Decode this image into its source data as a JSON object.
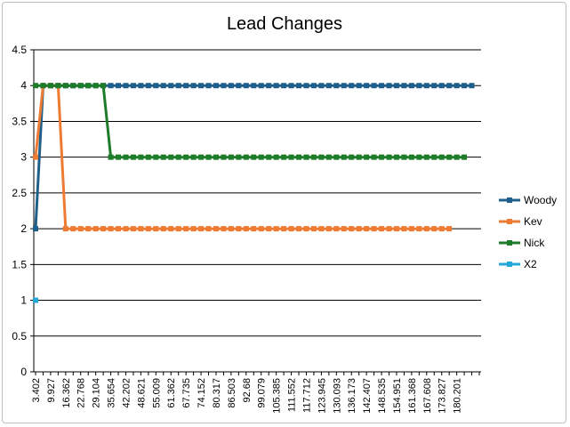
{
  "chart_data": {
    "type": "line",
    "title": "Lead Changes",
    "xlabel": "",
    "ylabel": "",
    "ylim": [
      0,
      4.5
    ],
    "y_ticks": [
      "0",
      "0.5",
      "1",
      "1.5",
      "2",
      "2.5",
      "3",
      "3.5",
      "4",
      "4.5"
    ],
    "x_tick_labels": [
      "3.402",
      "9.927",
      "16.362",
      "22.768",
      "29.104",
      "35.654",
      "42.202",
      "48.621",
      "55.009",
      "61.362",
      "67.735",
      "74.152",
      "80.317",
      "86.503",
      "92.68",
      "99.079",
      "105.385",
      "111.552",
      "117.712",
      "123.945",
      "130.093",
      "136.173",
      "142.407",
      "148.535",
      "154.951",
      "161.368",
      "167.608",
      "173.827",
      "180.201"
    ],
    "grid": true,
    "legend_position": "right",
    "series": [
      {
        "name": "Woody",
        "color": "#1f5f8b",
        "values": [
          2,
          4,
          4,
          4,
          4,
          4,
          4,
          4,
          4,
          4,
          4,
          4,
          4,
          4,
          4,
          4,
          4,
          4,
          4,
          4,
          4,
          4,
          4,
          4,
          4,
          4,
          4,
          4,
          4,
          4,
          4,
          4,
          4,
          4,
          4,
          4,
          4,
          4,
          4,
          4,
          4,
          4,
          4,
          4,
          4,
          4,
          4,
          4,
          4,
          4,
          4,
          4,
          4,
          4,
          4,
          4,
          4,
          4,
          4
        ]
      },
      {
        "name": "Kev",
        "color": "#ee7b34",
        "values": [
          3,
          4,
          4,
          4,
          2,
          2,
          2,
          2,
          2,
          2,
          2,
          2,
          2,
          2,
          2,
          2,
          2,
          2,
          2,
          2,
          2,
          2,
          2,
          2,
          2,
          2,
          2,
          2,
          2,
          2,
          2,
          2,
          2,
          2,
          2,
          2,
          2,
          2,
          2,
          2,
          2,
          2,
          2,
          2,
          2,
          2,
          2,
          2,
          2,
          2,
          2,
          2,
          2,
          2,
          2,
          2
        ]
      },
      {
        "name": "Nick",
        "color": "#1e7b2a",
        "values": [
          4,
          4,
          4,
          4,
          4,
          4,
          4,
          4,
          4,
          4,
          3,
          3,
          3,
          3,
          3,
          3,
          3,
          3,
          3,
          3,
          3,
          3,
          3,
          3,
          3,
          3,
          3,
          3,
          3,
          3,
          3,
          3,
          3,
          3,
          3,
          3,
          3,
          3,
          3,
          3,
          3,
          3,
          3,
          3,
          3,
          3,
          3,
          3,
          3,
          3,
          3,
          3,
          3,
          3,
          3,
          3,
          3,
          3
        ]
      },
      {
        "name": "X2",
        "color": "#21a7d8",
        "values": [
          1
        ]
      }
    ]
  }
}
